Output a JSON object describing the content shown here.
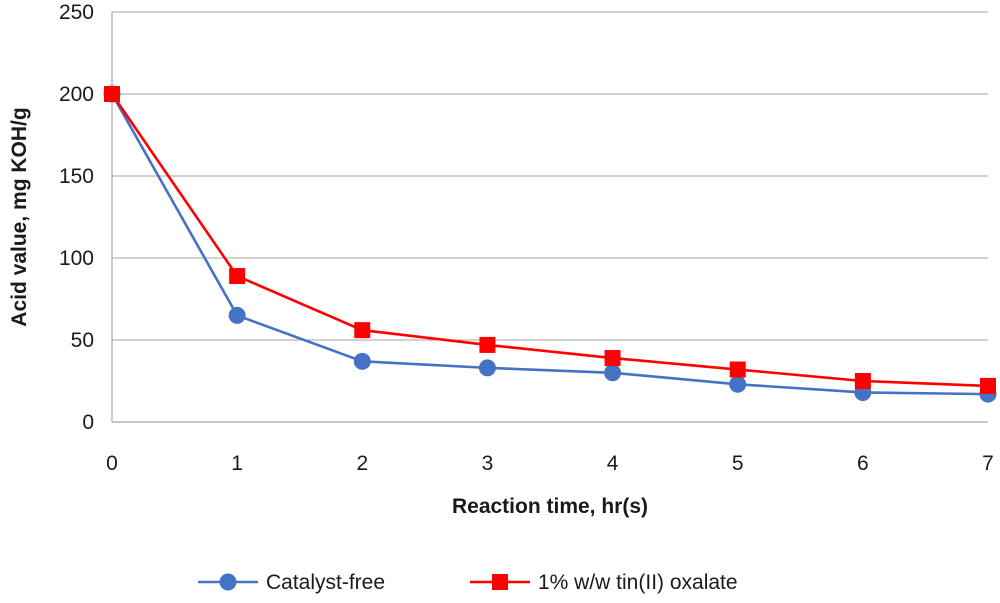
{
  "chart_data": {
    "type": "line",
    "xlabel": "Reaction time, hr(s)",
    "ylabel": "Acid value, mg KOH/g",
    "x": [
      0,
      1,
      2,
      3,
      4,
      5,
      6,
      7
    ],
    "xlim": [
      0,
      7
    ],
    "ylim": [
      0,
      250
    ],
    "yticks": [
      0,
      50,
      100,
      150,
      200,
      250
    ],
    "xticks": [
      0,
      1,
      2,
      3,
      4,
      5,
      6,
      7
    ],
    "grid": "horizontal",
    "legend_position": "bottom",
    "series": [
      {
        "name": "Catalyst-free",
        "color": "#4472C4",
        "marker": "circle",
        "values": [
          200,
          65,
          37,
          33,
          30,
          23,
          18,
          17
        ]
      },
      {
        "name": "1% w/w tin(II) oxalate",
        "color": "#FF0000",
        "marker": "square",
        "values": [
          200,
          89,
          56,
          47,
          39,
          32,
          25,
          22
        ]
      }
    ]
  }
}
